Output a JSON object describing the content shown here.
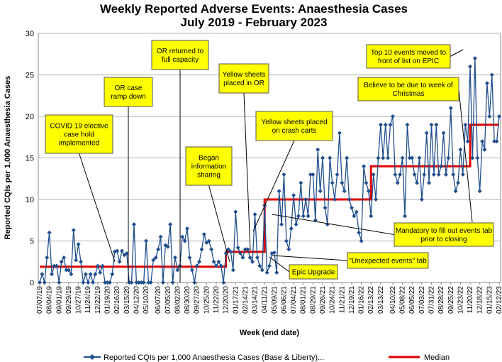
{
  "chart_data": {
    "type": "line",
    "title": "Weekly Reported Adverse Events: Anaesthesia Cases",
    "subtitle": "July 2019 - February 2023",
    "xlabel": "Week (end date)",
    "ylabel": "Reported CQIs per 1,000 Anaesthesia Cases",
    "ylim": [
      0,
      30
    ],
    "yticks": [
      0,
      5,
      10,
      15,
      20,
      25,
      30
    ],
    "grid": true,
    "x_tick_labels": [
      "07/07/19",
      "08/04/19",
      "09/01/19",
      "09/29/19",
      "10/27/19",
      "11/24/19",
      "12/22/19",
      "01/19/20",
      "02/16/20",
      "03/15/20",
      "04/12/20",
      "05/10/20",
      "06/07/20",
      "07/05/20",
      "08/02/20",
      "08/30/20",
      "09/27/20",
      "10/25/20",
      "11/22/20",
      "12/20/20",
      "01/17/21",
      "02/14/21",
      "03/14/21",
      "04/11/21",
      "05/09/21",
      "06/06/21",
      "07/04/21",
      "08/01/21",
      "08/29/21",
      "09/26/21",
      "10/24/21",
      "11/21/21",
      "12/19/21",
      "01/16/22",
      "02/13/22",
      "03/13/22",
      "04/10/22",
      "05/08/22",
      "06/05/22",
      "07/03/22",
      "07/31/22",
      "08/28/22",
      "09/25/22",
      "10/23/22",
      "11/20/22",
      "12/18/22",
      "01/15/23",
      "02/12/23"
    ],
    "series": [
      {
        "name": "Reported CQIs per 1,000 Anaesthesia Cases (Base & Liberty)...",
        "color": "#1f4e8c",
        "values": [
          0,
          1,
          0,
          3,
          6,
          1,
          2,
          2,
          0,
          2.5,
          3,
          1.5,
          1.5,
          1,
          6.3,
          2.7,
          4.6,
          2.5,
          0,
          1,
          0,
          1,
          0,
          1,
          2,
          1.2,
          2,
          0,
          0,
          0,
          1,
          3.7,
          3.8,
          2.5,
          3.8,
          3.3,
          3.5,
          0,
          0,
          7,
          0,
          0,
          0,
          0,
          5,
          0,
          0,
          2.7,
          3,
          4,
          5.5,
          0,
          4.5,
          4.3,
          7,
          0,
          3,
          1.5,
          2,
          5.5,
          5,
          6.5,
          3,
          1.5,
          0,
          2,
          2.5,
          4,
          5.8,
          4.8,
          5,
          4,
          2.5,
          2,
          2.5,
          2,
          0,
          3.5,
          4,
          3.7,
          1.5,
          8.5,
          4.2,
          3.5,
          3,
          4,
          4,
          3,
          2.5,
          8.2,
          3,
          2,
          1.5,
          9.3,
          1.2,
          2,
          3.5,
          3.6,
          1.2,
          11,
          7,
          13,
          5,
          4,
          6.5,
          10.5,
          7,
          8,
          12,
          8,
          10,
          8,
          13,
          13,
          7.5,
          16,
          11,
          15,
          9,
          7,
          15,
          12,
          10,
          13,
          18,
          12,
          11,
          15,
          10,
          9,
          8,
          8.5,
          6,
          5,
          14,
          12,
          11,
          8,
          13,
          10,
          15,
          19,
          15,
          19,
          15,
          19,
          20,
          13,
          12,
          13,
          15,
          8,
          19,
          15,
          15,
          13,
          12,
          15,
          10,
          13,
          18,
          12,
          19,
          13,
          19,
          13,
          14,
          18,
          13,
          15,
          21,
          13,
          11,
          12,
          16,
          13,
          19,
          17,
          26,
          15,
          27,
          15,
          11,
          17,
          16,
          24,
          20,
          25,
          17,
          17,
          20
        ]
      },
      {
        "name": "Median",
        "color": "#e00000",
        "segments": [
          {
            "from": "07/07/19",
            "to": "12/20/20",
            "value": 1.9
          },
          {
            "from": "12/20/20",
            "to": "04/11/21",
            "value": 3.7
          },
          {
            "from": "04/11/21",
            "to": "02/13/22",
            "value": 10
          },
          {
            "from": "02/13/22",
            "to": "11/20/22",
            "value": 14
          },
          {
            "from": "11/20/22",
            "to": "02/12/23",
            "value": 19
          }
        ]
      }
    ],
    "annotations": [
      {
        "lines": [
          "COVID 19 elective",
          "case hold",
          "implemented"
        ]
      },
      {
        "lines": [
          "OR case",
          "ramp down"
        ]
      },
      {
        "lines": [
          "OR returned to",
          "full capacity"
        ]
      },
      {
        "lines": [
          "Began",
          "information",
          "sharing"
        ]
      },
      {
        "lines": [
          "Yellow sheets",
          "placed in OR"
        ]
      },
      {
        "lines": [
          "Yellow sheets placed",
          "on crash carts"
        ]
      },
      {
        "lines": [
          "Top 10 events moved to",
          "front of list on EPIC"
        ]
      },
      {
        "lines": [
          "Believe to be due to week of",
          "Christmas"
        ]
      },
      {
        "lines": [
          "Mandatory to fill out events tab",
          "prior to closing"
        ]
      },
      {
        "lines": [
          "\"Unexpected events\" tab"
        ]
      },
      {
        "lines": [
          "Epic Upgrade"
        ]
      }
    ],
    "legend": {
      "position": "bottom",
      "entries": [
        "Reported CQIs per 1,000 Anaesthesia Cases (Base & Liberty)...",
        "Median"
      ]
    }
  }
}
